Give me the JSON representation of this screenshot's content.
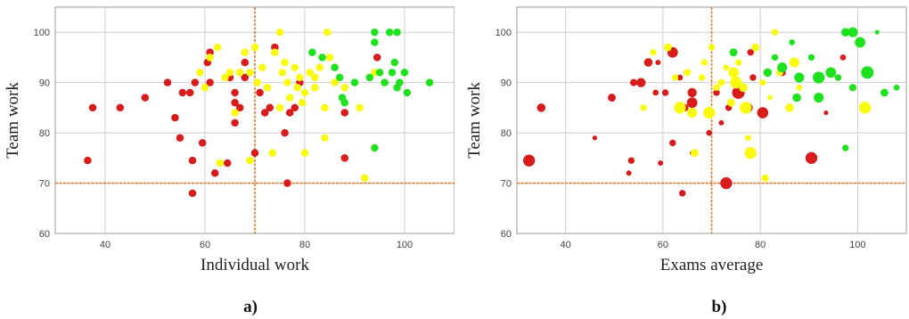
{
  "colors": {
    "red": "#d81c1c",
    "yellow": "#fafa10",
    "green": "#1ee21e",
    "threshold": "#e8781c",
    "grid": "#cfcfcf",
    "frame": "#9a9a9a"
  },
  "chart_data": [
    {
      "type": "scatter",
      "panel_label": "a)",
      "title": "",
      "xlabel": "Individual work",
      "ylabel": "Team work",
      "xlim": [
        30,
        110
      ],
      "ylim": [
        60,
        105
      ],
      "xticks": [
        40,
        60,
        80,
        100
      ],
      "yticks": [
        60,
        70,
        80,
        90,
        100
      ],
      "grid": true,
      "thresholds": {
        "x": 70,
        "y": 70
      },
      "bubble_size_varies": false,
      "points": [
        {
          "x": 36.5,
          "y": 74.5,
          "c": "red"
        },
        {
          "x": 37.5,
          "y": 85,
          "c": "red"
        },
        {
          "x": 43,
          "y": 85,
          "c": "red"
        },
        {
          "x": 48,
          "y": 87,
          "c": "red"
        },
        {
          "x": 52.5,
          "y": 90,
          "c": "red"
        },
        {
          "x": 54,
          "y": 83,
          "c": "red"
        },
        {
          "x": 55,
          "y": 79,
          "c": "red"
        },
        {
          "x": 55.5,
          "y": 88,
          "c": "red"
        },
        {
          "x": 57,
          "y": 88,
          "c": "red"
        },
        {
          "x": 57.5,
          "y": 74.5,
          "c": "red"
        },
        {
          "x": 57.5,
          "y": 68,
          "c": "red"
        },
        {
          "x": 58,
          "y": 90,
          "c": "red"
        },
        {
          "x": 59.5,
          "y": 78,
          "c": "red"
        },
        {
          "x": 60.5,
          "y": 94,
          "c": "red"
        },
        {
          "x": 61,
          "y": 96,
          "c": "red"
        },
        {
          "x": 61,
          "y": 90,
          "c": "red"
        },
        {
          "x": 62,
          "y": 72,
          "c": "red"
        },
        {
          "x": 64.5,
          "y": 74,
          "c": "red"
        },
        {
          "x": 65,
          "y": 91,
          "c": "red"
        },
        {
          "x": 66,
          "y": 88,
          "c": "red"
        },
        {
          "x": 66,
          "y": 86,
          "c": "red"
        },
        {
          "x": 66,
          "y": 82,
          "c": "red"
        },
        {
          "x": 67,
          "y": 85,
          "c": "red"
        },
        {
          "x": 68,
          "y": 94,
          "c": "red"
        },
        {
          "x": 68,
          "y": 91,
          "c": "red"
        },
        {
          "x": 70,
          "y": 76,
          "c": "red"
        },
        {
          "x": 71,
          "y": 88,
          "c": "red"
        },
        {
          "x": 72,
          "y": 84,
          "c": "red"
        },
        {
          "x": 73,
          "y": 85,
          "c": "red"
        },
        {
          "x": 74,
          "y": 97,
          "c": "red"
        },
        {
          "x": 76,
          "y": 80,
          "c": "red"
        },
        {
          "x": 76.5,
          "y": 70,
          "c": "red"
        },
        {
          "x": 77,
          "y": 84,
          "c": "red"
        },
        {
          "x": 78,
          "y": 85,
          "c": "red"
        },
        {
          "x": 79,
          "y": 90,
          "c": "red"
        },
        {
          "x": 88,
          "y": 84,
          "c": "red"
        },
        {
          "x": 88,
          "y": 75,
          "c": "red"
        },
        {
          "x": 94.5,
          "y": 95,
          "c": "red"
        },
        {
          "x": 59,
          "y": 92,
          "c": "yellow"
        },
        {
          "x": 60,
          "y": 89,
          "c": "yellow"
        },
        {
          "x": 61,
          "y": 95,
          "c": "yellow"
        },
        {
          "x": 62.5,
          "y": 97,
          "c": "yellow"
        },
        {
          "x": 63,
          "y": 74,
          "c": "yellow"
        },
        {
          "x": 64,
          "y": 91,
          "c": "yellow"
        },
        {
          "x": 65,
          "y": 92,
          "c": "yellow"
        },
        {
          "x": 66,
          "y": 84,
          "c": "yellow"
        },
        {
          "x": 67,
          "y": 92,
          "c": "yellow"
        },
        {
          "x": 68,
          "y": 96,
          "c": "yellow"
        },
        {
          "x": 69,
          "y": 92,
          "c": "yellow"
        },
        {
          "x": 69,
          "y": 74.5,
          "c": "yellow"
        },
        {
          "x": 70,
          "y": 97,
          "c": "yellow"
        },
        {
          "x": 70.5,
          "y": 90,
          "c": "yellow"
        },
        {
          "x": 71.5,
          "y": 93,
          "c": "yellow"
        },
        {
          "x": 72.5,
          "y": 89,
          "c": "yellow"
        },
        {
          "x": 73.5,
          "y": 76,
          "c": "yellow"
        },
        {
          "x": 74,
          "y": 96,
          "c": "yellow"
        },
        {
          "x": 75,
          "y": 100,
          "c": "yellow"
        },
        {
          "x": 75,
          "y": 85,
          "c": "yellow"
        },
        {
          "x": 75.5,
          "y": 92,
          "c": "yellow"
        },
        {
          "x": 76,
          "y": 94,
          "c": "yellow"
        },
        {
          "x": 76.5,
          "y": 90,
          "c": "yellow"
        },
        {
          "x": 77,
          "y": 87,
          "c": "yellow"
        },
        {
          "x": 78,
          "y": 93,
          "c": "yellow"
        },
        {
          "x": 78.5,
          "y": 89,
          "c": "yellow"
        },
        {
          "x": 79,
          "y": 91,
          "c": "yellow"
        },
        {
          "x": 79.5,
          "y": 86,
          "c": "yellow"
        },
        {
          "x": 80,
          "y": 88,
          "c": "yellow"
        },
        {
          "x": 80,
          "y": 76,
          "c": "yellow"
        },
        {
          "x": 81,
          "y": 92,
          "c": "yellow"
        },
        {
          "x": 82,
          "y": 91,
          "c": "yellow"
        },
        {
          "x": 82,
          "y": 89,
          "c": "yellow"
        },
        {
          "x": 83,
          "y": 93,
          "c": "yellow"
        },
        {
          "x": 84,
          "y": 85,
          "c": "yellow"
        },
        {
          "x": 84,
          "y": 79,
          "c": "yellow"
        },
        {
          "x": 84.5,
          "y": 100,
          "c": "yellow"
        },
        {
          "x": 85,
          "y": 95,
          "c": "yellow"
        },
        {
          "x": 86,
          "y": 90,
          "c": "yellow"
        },
        {
          "x": 88,
          "y": 89,
          "c": "yellow"
        },
        {
          "x": 91,
          "y": 85,
          "c": "yellow"
        },
        {
          "x": 92,
          "y": 71,
          "c": "yellow"
        },
        {
          "x": 94,
          "y": 92,
          "c": "yellow"
        },
        {
          "x": 81.5,
          "y": 96,
          "c": "green"
        },
        {
          "x": 83.5,
          "y": 95,
          "c": "green"
        },
        {
          "x": 86,
          "y": 93,
          "c": "green"
        },
        {
          "x": 87,
          "y": 91,
          "c": "green"
        },
        {
          "x": 87.5,
          "y": 87,
          "c": "green"
        },
        {
          "x": 88,
          "y": 86,
          "c": "green"
        },
        {
          "x": 90,
          "y": 90,
          "c": "green"
        },
        {
          "x": 93,
          "y": 91,
          "c": "green"
        },
        {
          "x": 94,
          "y": 100,
          "c": "green"
        },
        {
          "x": 94,
          "y": 98,
          "c": "green"
        },
        {
          "x": 94,
          "y": 77,
          "c": "green"
        },
        {
          "x": 95,
          "y": 92,
          "c": "green"
        },
        {
          "x": 96,
          "y": 90,
          "c": "green"
        },
        {
          "x": 97,
          "y": 100,
          "c": "green"
        },
        {
          "x": 97.5,
          "y": 92,
          "c": "green"
        },
        {
          "x": 98,
          "y": 94,
          "c": "green"
        },
        {
          "x": 98.5,
          "y": 100,
          "c": "green"
        },
        {
          "x": 98.5,
          "y": 89,
          "c": "green"
        },
        {
          "x": 99,
          "y": 90,
          "c": "green"
        },
        {
          "x": 100,
          "y": 92,
          "c": "green"
        },
        {
          "x": 100.5,
          "y": 88,
          "c": "green"
        },
        {
          "x": 105,
          "y": 90,
          "c": "green"
        }
      ]
    },
    {
      "type": "scatter",
      "panel_label": "b)",
      "title": "",
      "xlabel": "Exams average",
      "ylabel": "Team work",
      "xlim": [
        30,
        110
      ],
      "ylim": [
        60,
        105
      ],
      "xticks": [
        40,
        60,
        80,
        100
      ],
      "yticks": [
        60,
        70,
        80,
        90,
        100
      ],
      "grid": true,
      "thresholds": {
        "x": 70,
        "y": 70
      },
      "bubble_size_varies": true,
      "points": [
        {
          "x": 32.5,
          "y": 74.5,
          "c": "red",
          "s": 3.6
        },
        {
          "x": 35,
          "y": 85,
          "c": "red",
          "s": 2.6
        },
        {
          "x": 46,
          "y": 79,
          "c": "red",
          "s": 1.4
        },
        {
          "x": 49.5,
          "y": 87,
          "c": "red",
          "s": 2.4
        },
        {
          "x": 53,
          "y": 72,
          "c": "red",
          "s": 1.6
        },
        {
          "x": 53.5,
          "y": 74.5,
          "c": "red",
          "s": 2.0
        },
        {
          "x": 54,
          "y": 90,
          "c": "red",
          "s": 2.2
        },
        {
          "x": 55.5,
          "y": 90,
          "c": "red",
          "s": 2.8
        },
        {
          "x": 57,
          "y": 94,
          "c": "red",
          "s": 2.6
        },
        {
          "x": 58.5,
          "y": 88,
          "c": "red",
          "s": 1.8
        },
        {
          "x": 59,
          "y": 94,
          "c": "red",
          "s": 1.6
        },
        {
          "x": 59.5,
          "y": 74,
          "c": "red",
          "s": 1.6
        },
        {
          "x": 60.5,
          "y": 88,
          "c": "red",
          "s": 2.0
        },
        {
          "x": 62,
          "y": 96,
          "c": "red",
          "s": 3.2
        },
        {
          "x": 62,
          "y": 78,
          "c": "red",
          "s": 2.0
        },
        {
          "x": 63.5,
          "y": 91,
          "c": "red",
          "s": 1.8
        },
        {
          "x": 64,
          "y": 68,
          "c": "red",
          "s": 2.0
        },
        {
          "x": 64.5,
          "y": 85,
          "c": "red",
          "s": 2.2
        },
        {
          "x": 66,
          "y": 88,
          "c": "red",
          "s": 2.8
        },
        {
          "x": 66,
          "y": 86,
          "c": "red",
          "s": 3.2
        },
        {
          "x": 66,
          "y": 76,
          "c": "red",
          "s": 1.4
        },
        {
          "x": 69.5,
          "y": 80,
          "c": "red",
          "s": 1.8
        },
        {
          "x": 71,
          "y": 88,
          "c": "red",
          "s": 2.0
        },
        {
          "x": 72,
          "y": 82,
          "c": "red",
          "s": 1.6
        },
        {
          "x": 73,
          "y": 70,
          "c": "red",
          "s": 3.6
        },
        {
          "x": 73.5,
          "y": 85,
          "c": "red",
          "s": 2.0
        },
        {
          "x": 75.5,
          "y": 88,
          "c": "red",
          "s": 3.8
        },
        {
          "x": 77.5,
          "y": 85,
          "c": "red",
          "s": 2.8
        },
        {
          "x": 78,
          "y": 96,
          "c": "red",
          "s": 2.0
        },
        {
          "x": 78.5,
          "y": 91,
          "c": "red",
          "s": 2.0
        },
        {
          "x": 80.5,
          "y": 84,
          "c": "red",
          "s": 3.4
        },
        {
          "x": 84.5,
          "y": 92,
          "c": "red",
          "s": 2.2
        },
        {
          "x": 90.5,
          "y": 75,
          "c": "red",
          "s": 3.6
        },
        {
          "x": 93.5,
          "y": 84,
          "c": "red",
          "s": 1.4
        },
        {
          "x": 97,
          "y": 95,
          "c": "red",
          "s": 1.8
        },
        {
          "x": 56,
          "y": 85,
          "c": "yellow",
          "s": 2.0
        },
        {
          "x": 58,
          "y": 96,
          "c": "yellow",
          "s": 2.0
        },
        {
          "x": 61,
          "y": 97,
          "c": "yellow",
          "s": 2.4
        },
        {
          "x": 62.5,
          "y": 91,
          "c": "yellow",
          "s": 2.0
        },
        {
          "x": 63.5,
          "y": 85,
          "c": "yellow",
          "s": 3.6
        },
        {
          "x": 65,
          "y": 92,
          "c": "yellow",
          "s": 2.2
        },
        {
          "x": 66,
          "y": 84,
          "c": "yellow",
          "s": 3.0
        },
        {
          "x": 66.5,
          "y": 76,
          "c": "yellow",
          "s": 2.4
        },
        {
          "x": 68,
          "y": 91,
          "c": "yellow",
          "s": 2.0
        },
        {
          "x": 68.5,
          "y": 94,
          "c": "yellow",
          "s": 2.0
        },
        {
          "x": 69.5,
          "y": 84,
          "c": "yellow",
          "s": 3.6
        },
        {
          "x": 70,
          "y": 97,
          "c": "yellow",
          "s": 2.0
        },
        {
          "x": 71,
          "y": 89,
          "c": "yellow",
          "s": 2.0
        },
        {
          "x": 72,
          "y": 90,
          "c": "yellow",
          "s": 2.2
        },
        {
          "x": 73,
          "y": 93,
          "c": "yellow",
          "s": 1.8
        },
        {
          "x": 74,
          "y": 86,
          "c": "yellow",
          "s": 2.4
        },
        {
          "x": 74.5,
          "y": 92,
          "c": "yellow",
          "s": 3.2
        },
        {
          "x": 75,
          "y": 90,
          "c": "yellow",
          "s": 3.6
        },
        {
          "x": 75.5,
          "y": 94,
          "c": "yellow",
          "s": 2.0
        },
        {
          "x": 76.5,
          "y": 89,
          "c": "yellow",
          "s": 2.6
        },
        {
          "x": 77,
          "y": 85,
          "c": "yellow",
          "s": 3.6
        },
        {
          "x": 77.5,
          "y": 79,
          "c": "yellow",
          "s": 1.8
        },
        {
          "x": 78,
          "y": 76,
          "c": "yellow",
          "s": 3.6
        },
        {
          "x": 79,
          "y": 97,
          "c": "yellow",
          "s": 2.4
        },
        {
          "x": 80.5,
          "y": 90,
          "c": "yellow",
          "s": 2.0
        },
        {
          "x": 81,
          "y": 71,
          "c": "yellow",
          "s": 2.2
        },
        {
          "x": 82,
          "y": 87,
          "c": "yellow",
          "s": 1.6
        },
        {
          "x": 83,
          "y": 100,
          "c": "yellow",
          "s": 2.0
        },
        {
          "x": 84,
          "y": 92,
          "c": "yellow",
          "s": 2.2
        },
        {
          "x": 86,
          "y": 85,
          "c": "yellow",
          "s": 2.6
        },
        {
          "x": 87,
          "y": 94,
          "c": "yellow",
          "s": 3.0
        },
        {
          "x": 88,
          "y": 89,
          "c": "yellow",
          "s": 1.8
        },
        {
          "x": 101.5,
          "y": 85,
          "c": "yellow",
          "s": 3.6
        },
        {
          "x": 74.5,
          "y": 96,
          "c": "green",
          "s": 2.4
        },
        {
          "x": 81.5,
          "y": 92,
          "c": "green",
          "s": 2.6
        },
        {
          "x": 83,
          "y": 95,
          "c": "green",
          "s": 2.0
        },
        {
          "x": 84.5,
          "y": 93,
          "c": "green",
          "s": 3.0
        },
        {
          "x": 86.5,
          "y": 98,
          "c": "green",
          "s": 1.8
        },
        {
          "x": 87.5,
          "y": 87,
          "c": "green",
          "s": 2.6
        },
        {
          "x": 88,
          "y": 91,
          "c": "green",
          "s": 3.0
        },
        {
          "x": 90.5,
          "y": 95,
          "c": "green",
          "s": 2.0
        },
        {
          "x": 92,
          "y": 91,
          "c": "green",
          "s": 3.6
        },
        {
          "x": 92,
          "y": 87,
          "c": "green",
          "s": 3.0
        },
        {
          "x": 94.5,
          "y": 92,
          "c": "green",
          "s": 3.2
        },
        {
          "x": 96,
          "y": 91,
          "c": "green",
          "s": 2.0
        },
        {
          "x": 97.5,
          "y": 100,
          "c": "green",
          "s": 2.6
        },
        {
          "x": 97.5,
          "y": 77,
          "c": "green",
          "s": 2.0
        },
        {
          "x": 99,
          "y": 100,
          "c": "green",
          "s": 3.0
        },
        {
          "x": 99,
          "y": 89,
          "c": "green",
          "s": 2.2
        },
        {
          "x": 100.5,
          "y": 98,
          "c": "green",
          "s": 3.2
        },
        {
          "x": 102,
          "y": 92,
          "c": "green",
          "s": 3.8
        },
        {
          "x": 104,
          "y": 100,
          "c": "green",
          "s": 1.4
        },
        {
          "x": 105.5,
          "y": 88,
          "c": "green",
          "s": 2.4
        },
        {
          "x": 108,
          "y": 89,
          "c": "green",
          "s": 1.8
        }
      ]
    }
  ]
}
